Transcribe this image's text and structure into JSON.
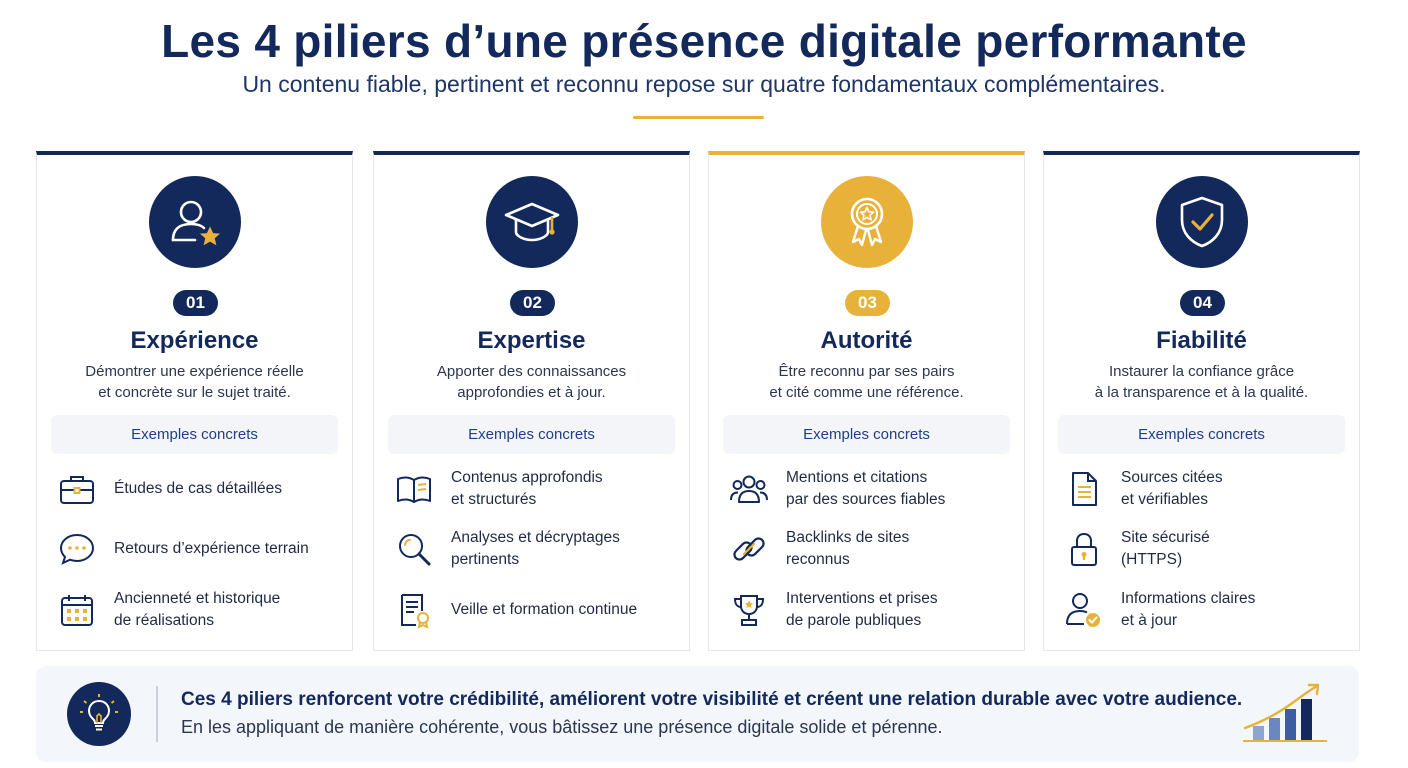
{
  "header": {
    "title": "Les 4 piliers d’une présence digitale performante",
    "subtitle": "Un contenu fiable, pertinent et reconnu repose sur quatre fondamentaux complémentaires."
  },
  "colors": {
    "navy": "#13295b",
    "gold": "#e8b23a",
    "label_blue": "#1f3f86"
  },
  "pillars": [
    {
      "number": "01",
      "title": "Expérience",
      "description": "Démontrer une expérience réelle\net concrète sur le sujet traité.",
      "accent": "navy",
      "icon": "user-star-icon",
      "examples_label": "Exemples concrets",
      "examples": [
        {
          "icon": "briefcase-icon",
          "text": "Études de cas détaillées"
        },
        {
          "icon": "chat-bubble-icon",
          "text": "Retours d’expérience terrain"
        },
        {
          "icon": "calendar-icon",
          "text": "Ancienneté et historique\nde réalisations"
        }
      ]
    },
    {
      "number": "02",
      "title": "Expertise",
      "description": "Apporter des connaissances\napprofondies et à jour.",
      "accent": "navy",
      "icon": "graduation-cap-icon",
      "examples_label": "Exemples concrets",
      "examples": [
        {
          "icon": "open-book-icon",
          "text": "Contenus approfondis\net structurés"
        },
        {
          "icon": "magnifier-icon",
          "text": "Analyses et décryptages\npertinents"
        },
        {
          "icon": "certificate-icon",
          "text": "Veille et formation continue"
        }
      ]
    },
    {
      "number": "03",
      "title": "Autorité",
      "description": "Être reconnu par ses pairs\net cité comme une référence.",
      "accent": "gold",
      "icon": "award-ribbon-icon",
      "examples_label": "Exemples concrets",
      "examples": [
        {
          "icon": "people-group-icon",
          "text": "Mentions et citations\npar des sources fiables"
        },
        {
          "icon": "link-icon",
          "text": "Backlinks de sites\nreconnus"
        },
        {
          "icon": "trophy-icon",
          "text": "Interventions et prises\nde parole publiques"
        }
      ]
    },
    {
      "number": "04",
      "title": "Fiabilité",
      "description": "Instaurer la confiance grâce\nà la transparence et à la qualité.",
      "accent": "navy",
      "icon": "shield-check-icon",
      "examples_label": "Exemples concrets",
      "examples": [
        {
          "icon": "document-icon",
          "text": "Sources citées\net vérifiables"
        },
        {
          "icon": "padlock-icon",
          "text": "Site sécurisé\n(HTTPS)"
        },
        {
          "icon": "user-check-icon",
          "text": "Informations claires\net à jour"
        }
      ]
    }
  ],
  "footer": {
    "icon": "lightbulb-icon",
    "headline": "Ces 4 piliers renforcent votre crédibilité, améliorent votre visibilité et créent une relation durable avec votre audience.",
    "text": "En les appliquant de manière cohérente, vous bâtissez une présence digitale solide et pérenne.",
    "chart_icon": "growth-chart-icon"
  }
}
